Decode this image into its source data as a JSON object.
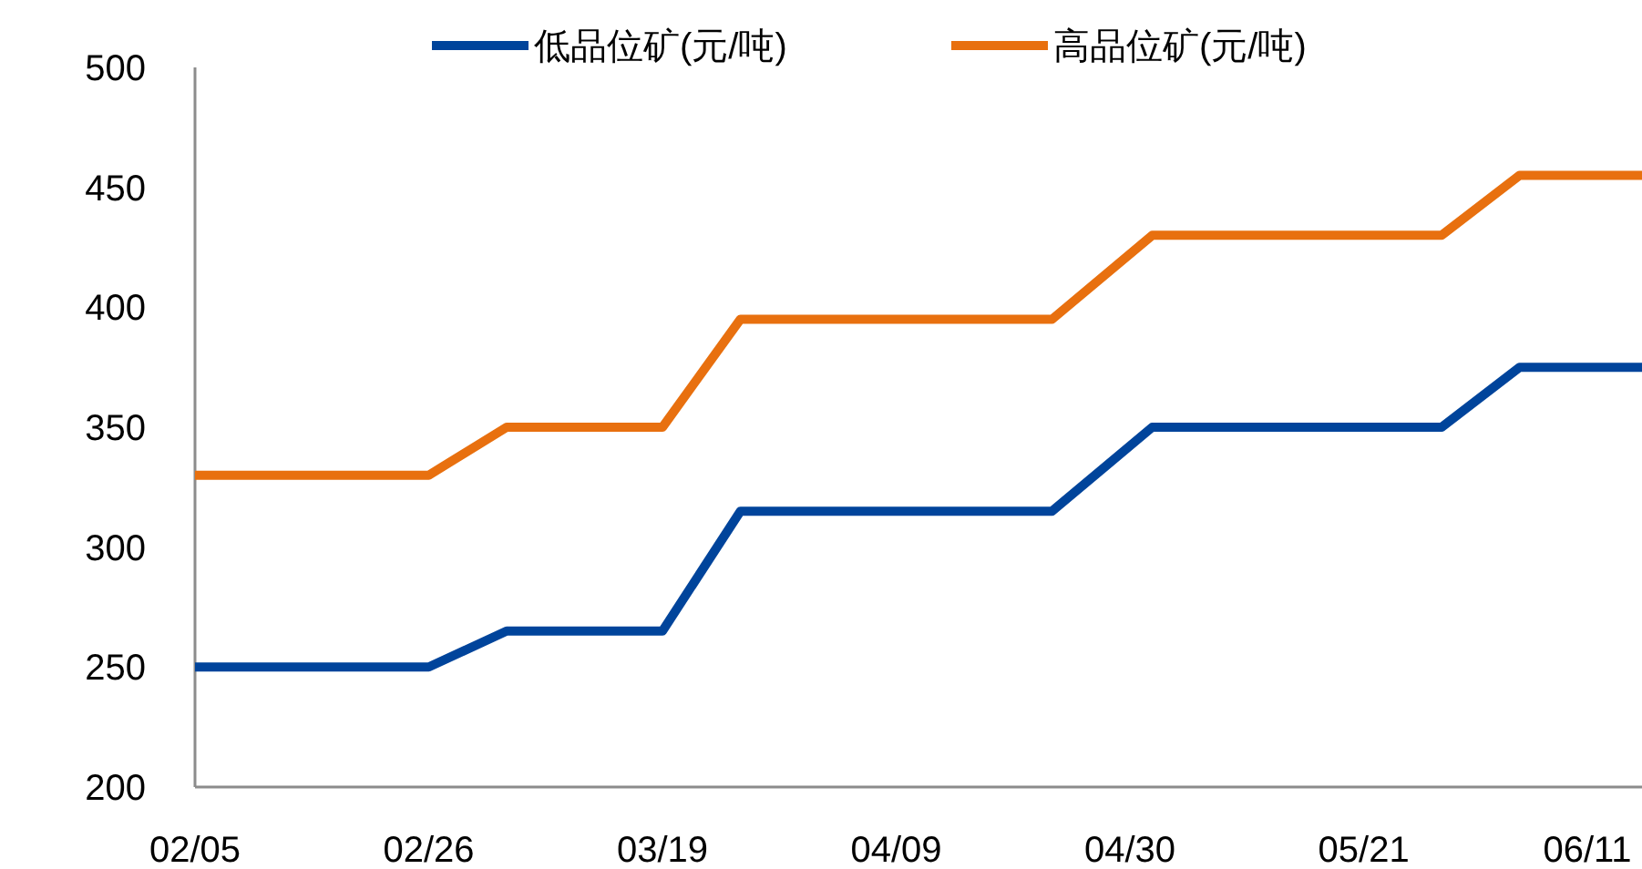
{
  "chart_data": {
    "type": "line",
    "x": [
      "--02-05",
      "--02-26",
      "--03-05",
      "--03-19",
      "--03-26",
      "--04-23",
      "--05-02",
      "--05-28",
      "--06-04",
      "--06-15"
    ],
    "series": [
      {
        "name": "低品位矿(元/吨)",
        "color": "#00449b",
        "values": [
          250,
          250,
          265,
          265,
          315,
          315,
          350,
          350,
          375,
          375
        ]
      },
      {
        "name": "高品位矿(元/吨)",
        "color": "#e8700f",
        "values": [
          330,
          330,
          350,
          350,
          395,
          395,
          430,
          430,
          455,
          455
        ]
      }
    ],
    "xlim": [
      "--02-05",
      "--06-15"
    ],
    "xticks": [
      {
        "value": "--02-05",
        "label": "02/05"
      },
      {
        "value": "--02-26",
        "label": "02/26"
      },
      {
        "value": "--03-19",
        "label": "03/19"
      },
      {
        "value": "--04-09",
        "label": "04/09"
      },
      {
        "value": "--04-30",
        "label": "04/30"
      },
      {
        "value": "--05-21",
        "label": "05/21"
      },
      {
        "value": "--06-11",
        "label": "06/11"
      }
    ],
    "ylim": [
      200,
      500
    ],
    "yticks": [
      200,
      250,
      300,
      350,
      400,
      450,
      500
    ],
    "grid": false,
    "legend": "top",
    "marker": "none",
    "line_style": "solid"
  }
}
